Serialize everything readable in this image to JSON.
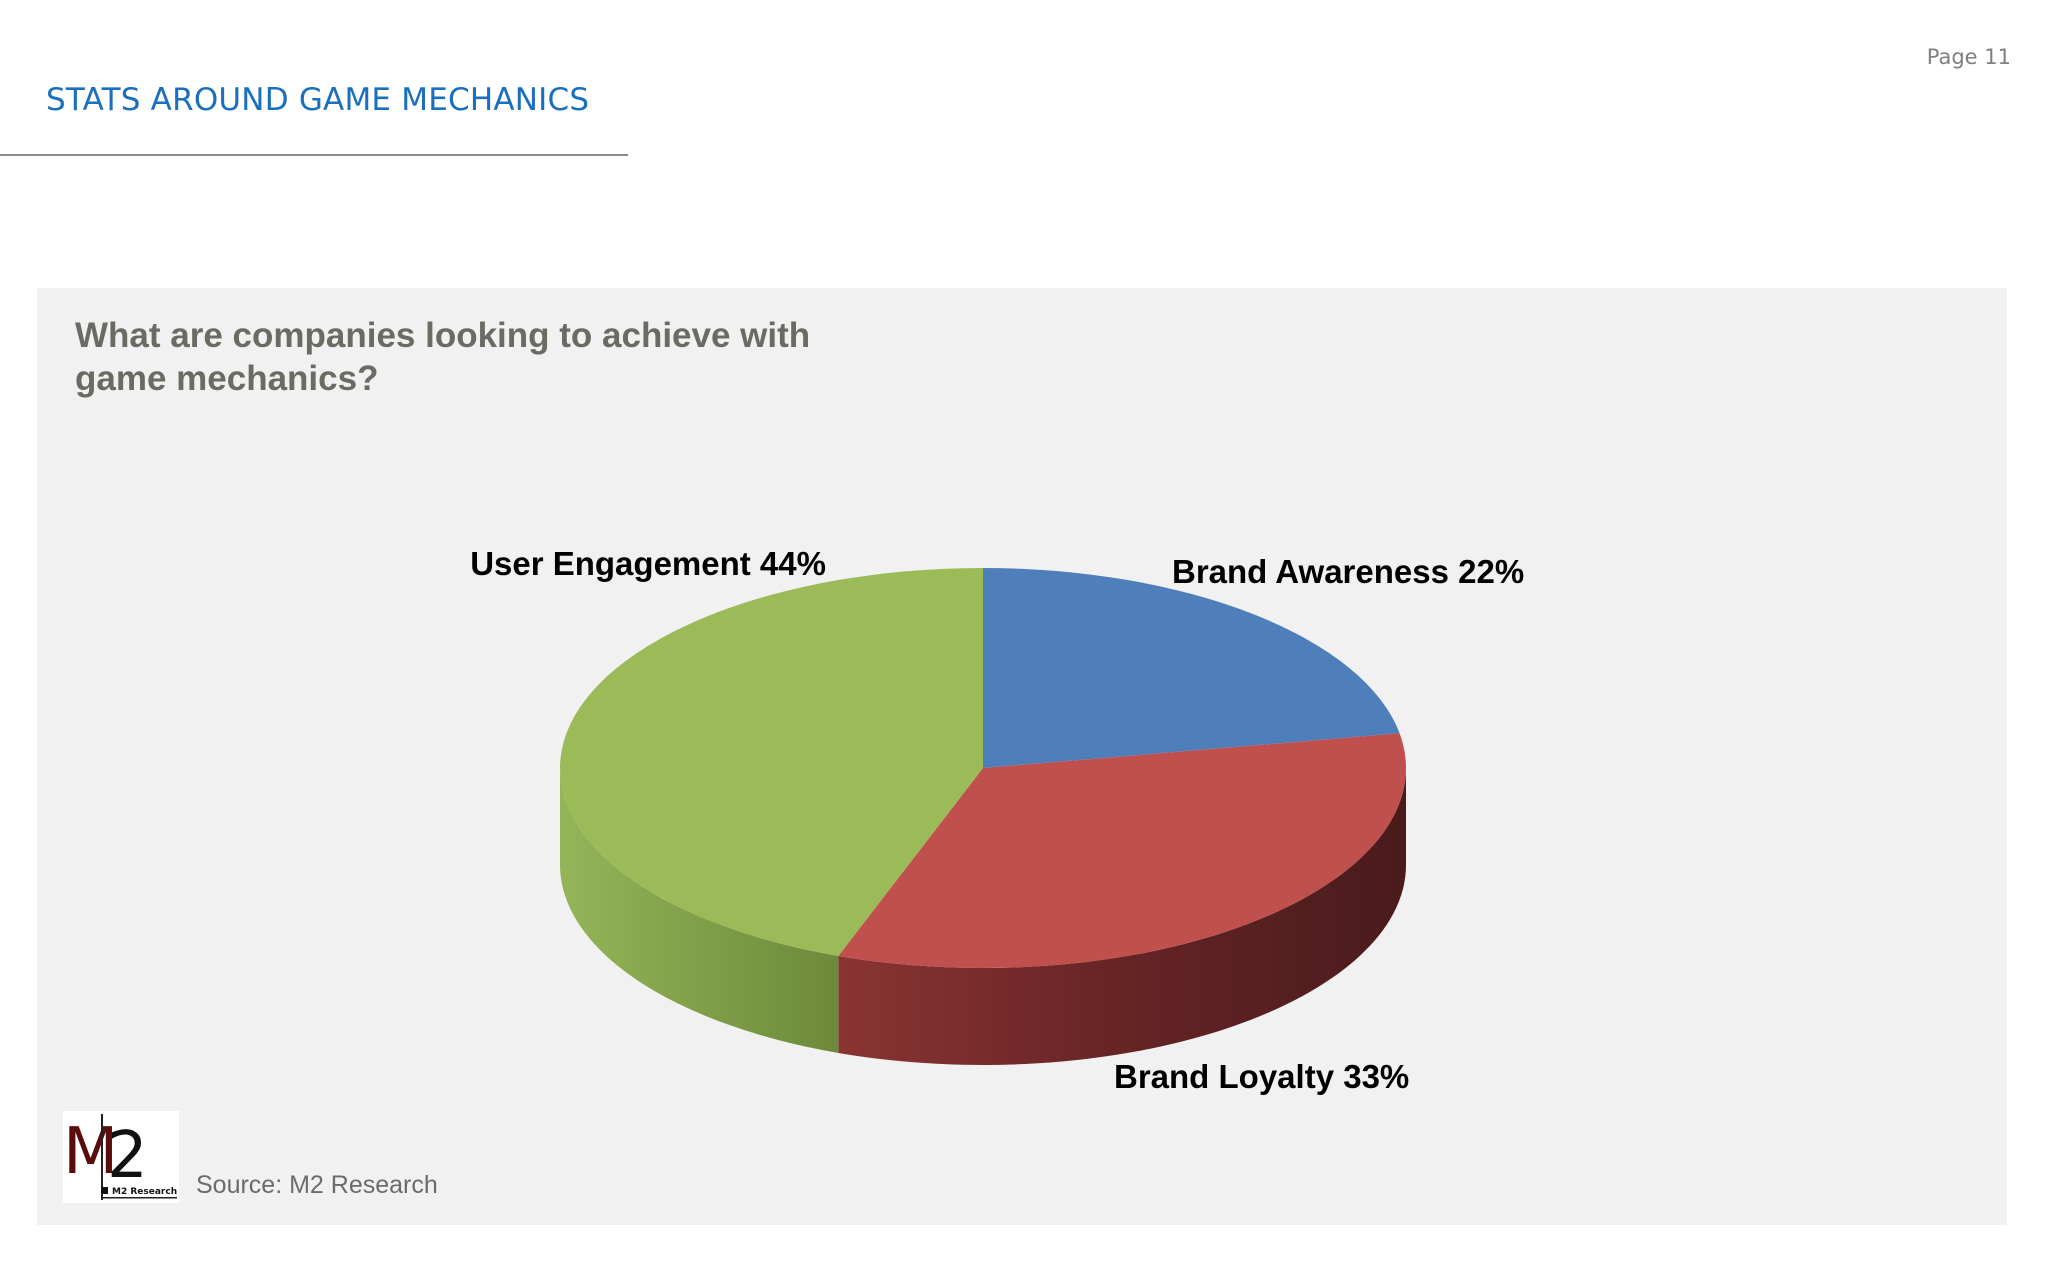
{
  "page": {
    "page_number": "Page 11",
    "title": "STATS AROUND GAME MECHANICS"
  },
  "panel": {
    "question": "What are companies looking to achieve with game mechanics?",
    "source": "Source: M2 Research",
    "logo": {
      "big_text": "M2",
      "small_text": "M2 Research"
    }
  },
  "colors": {
    "title_blue": "#1a6fbf",
    "panel_bg": "#f1f1f2",
    "brand_awareness": "#4f7fba",
    "brand_loyalty": "#c0504d",
    "user_engagement": "#9bbb59"
  },
  "chart_data": {
    "type": "pie",
    "style": "3d",
    "title": "What are companies looking to achieve with game mechanics?",
    "slices": [
      {
        "label": "Brand Awareness",
        "value": 22,
        "display": "Brand Awareness  22%",
        "color": "#4f7fba"
      },
      {
        "label": "Brand Loyalty",
        "value": 33,
        "display": "Brand Loyalty 33%",
        "color": "#c0504d"
      },
      {
        "label": "User Engagement",
        "value": 44,
        "display": "User Engagement 44%",
        "color": "#9bbb59"
      }
    ],
    "units": "%",
    "legend": "none",
    "source": "Source: M2 Research"
  }
}
